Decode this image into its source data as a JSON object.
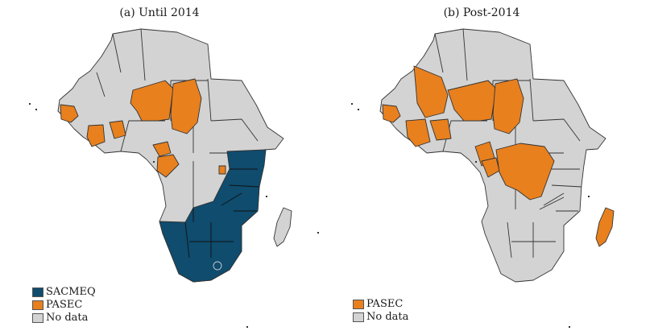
{
  "colors": {
    "sacmeq": "#0f4c6e",
    "pasec": "#e8801e",
    "no_data": "#d3d3d3",
    "border": "#333333"
  },
  "panels": [
    {
      "title": "(a) Until 2014",
      "legend": [
        {
          "label": "SACMEQ",
          "color": "#0f4c6e"
        },
        {
          "label": "PASEC",
          "color": "#e8801e"
        },
        {
          "label": "No data",
          "color": "#d3d3d3"
        }
      ]
    },
    {
      "title": "(b) Post-2014",
      "legend": [
        {
          "label": "PASEC",
          "color": "#e8801e"
        },
        {
          "label": "No data",
          "color": "#d3d3d3"
        }
      ]
    }
  ]
}
